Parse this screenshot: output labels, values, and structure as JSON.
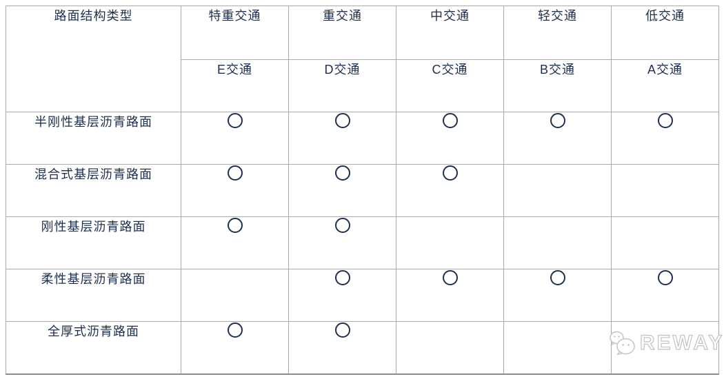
{
  "table": {
    "corner_header": "路面结构类型",
    "traffic_levels": [
      "特重交通",
      "重交通",
      "中交通",
      "轻交通",
      "低交通"
    ],
    "traffic_classes": [
      "E交通",
      "D交通",
      "C交通",
      "B交通",
      "A交通"
    ],
    "rows": [
      {
        "label": "半刚性基层沥青路面",
        "marks": [
          true,
          true,
          true,
          true,
          true
        ]
      },
      {
        "label": "混合式基层沥青路面",
        "marks": [
          true,
          true,
          true,
          false,
          false
        ]
      },
      {
        "label": "刚性基层沥青路面",
        "marks": [
          true,
          true,
          false,
          false,
          false
        ]
      },
      {
        "label": "柔性基层沥青路面",
        "marks": [
          false,
          true,
          true,
          true,
          true
        ]
      },
      {
        "label": "全厚式沥青路面",
        "marks": [
          true,
          true,
          false,
          false,
          false
        ]
      }
    ],
    "mark_symbol": "○"
  },
  "watermark": {
    "text": "REWAY",
    "icon": "wechat-icon"
  },
  "colors": {
    "text_navy": "#1e2f4e",
    "grid_gray": "#a9a9a9",
    "outer_bottom_border": "#8c8c8c",
    "watermark_gray": "#c2c2c2",
    "background": "#ffffff"
  }
}
